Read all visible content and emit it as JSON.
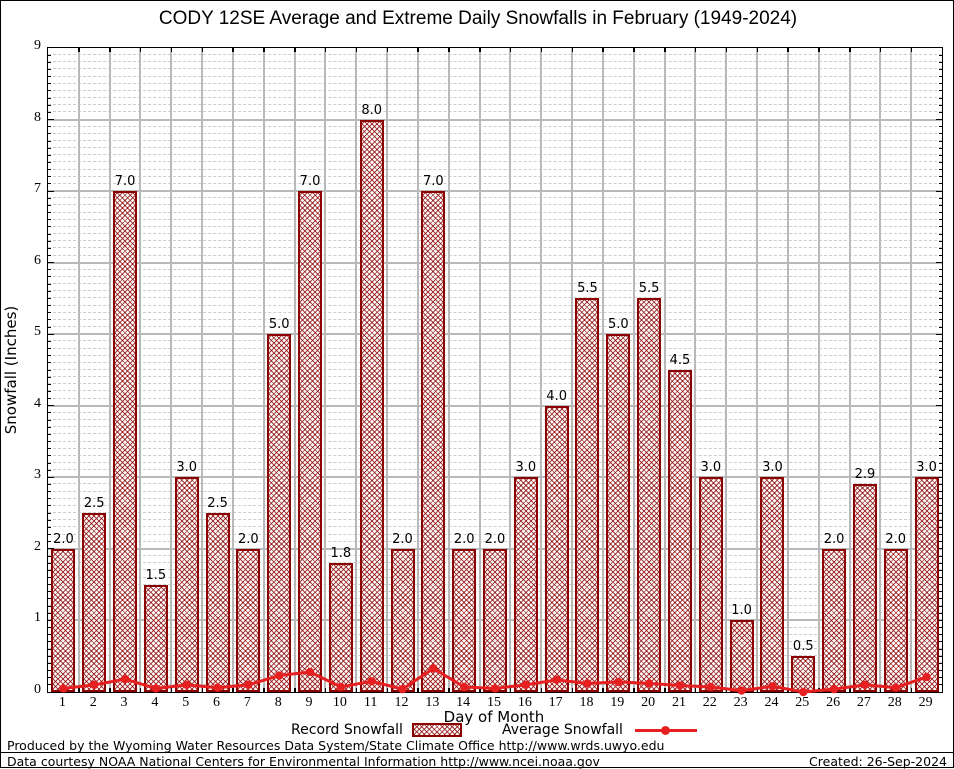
{
  "title": "CODY 12SE Average and Extreme Daily Snowfalls in February (1949-2024)",
  "y_axis": {
    "label": "Snowfall (Inches)",
    "ticks": [
      "0",
      "1",
      "2",
      "3",
      "4",
      "5",
      "6",
      "7",
      "8",
      "9"
    ]
  },
  "x_axis": {
    "label": "Day of Month",
    "ticks": [
      "1",
      "2",
      "3",
      "4",
      "5",
      "6",
      "7",
      "8",
      "9",
      "10",
      "11",
      "12",
      "13",
      "14",
      "15",
      "16",
      "17",
      "18",
      "19",
      "20",
      "21",
      "22",
      "23",
      "24",
      "25",
      "26",
      "27",
      "28",
      "29"
    ]
  },
  "legend": {
    "record_label": "Record Snowfall",
    "average_label": "Average Snowfall"
  },
  "footer": {
    "line1": "Produced by the Wyoming Water Resources Data System/State Climate Office http://www.wrds.uwyo.edu",
    "line2": "Data courtesy NOAA National Centers for Environmental Information http://www.ncei.noaa.gov",
    "created": "Created: 26-Sep-2024"
  },
  "colors": {
    "bar_border": "#8b0000",
    "bar_hatch": "#8b0000",
    "avg_line": "#e62020",
    "grid_major": "#b9b9b9",
    "grid_minor": "#cdcdcd"
  },
  "chart_data": {
    "type": "bar",
    "title": "CODY 12SE Average and Extreme Daily Snowfalls in February (1949-2024)",
    "xlabel": "Day of Month",
    "ylabel": "Snowfall (Inches)",
    "ylim": [
      0,
      9
    ],
    "grid": true,
    "legend_position": "bottom",
    "categories": [
      1,
      2,
      3,
      4,
      5,
      6,
      7,
      8,
      9,
      10,
      11,
      12,
      13,
      14,
      15,
      16,
      17,
      18,
      19,
      20,
      21,
      22,
      23,
      24,
      25,
      26,
      27,
      28,
      29
    ],
    "series": [
      {
        "name": "Record Snowfall",
        "type": "bar",
        "values": [
          2.0,
          2.5,
          7.0,
          1.5,
          3.0,
          2.5,
          2.0,
          5.0,
          7.0,
          1.8,
          8.0,
          2.0,
          7.0,
          2.0,
          2.0,
          3.0,
          4.0,
          5.5,
          5.0,
          5.5,
          4.5,
          3.0,
          1.0,
          3.0,
          0.5,
          2.0,
          2.9,
          2.0,
          3.0
        ]
      },
      {
        "name": "Average Snowfall",
        "type": "line",
        "values": [
          0.05,
          0.1,
          0.18,
          0.05,
          0.1,
          0.06,
          0.1,
          0.23,
          0.28,
          0.07,
          0.15,
          0.04,
          0.33,
          0.07,
          0.05,
          0.1,
          0.17,
          0.12,
          0.14,
          0.12,
          0.09,
          0.07,
          0.02,
          0.08,
          0.0,
          0.04,
          0.1,
          0.06,
          0.21
        ]
      }
    ],
    "bar_labels": [
      "2.0",
      "2.5",
      "7.0",
      "1.5",
      "3.0",
      "2.5",
      "2.0",
      "5.0",
      "7.0",
      "1.8",
      "8.0",
      "2.0",
      "7.0",
      "2.0",
      "2.0",
      "3.0",
      "4.0",
      "5.5",
      "5.0",
      "5.5",
      "4.5",
      "3.0",
      "1.0",
      "3.0",
      "0.5",
      "2.0",
      "2.9",
      "2.0",
      "3.0"
    ]
  }
}
